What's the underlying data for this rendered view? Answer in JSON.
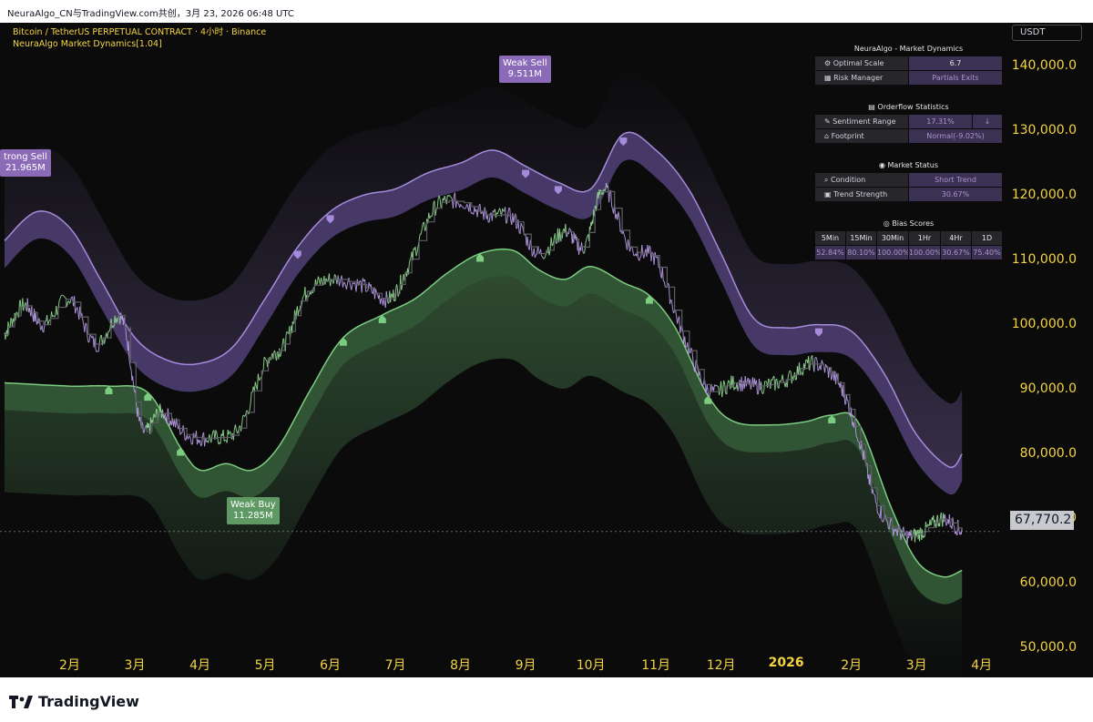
{
  "header": {
    "text": "NeuraAlgo_CN与TradingView.com共创，3月 23, 2026 06:48 UTC"
  },
  "chart_header": {
    "symbol_line": "Bitcoin / TetherUS PERPETUAL CONTRACT · 4小时 · Binance",
    "indicator_line": "NeuraAlgo Market Dynamics[1.04]"
  },
  "currency_button": "USDT",
  "last_price": "67,770.2",
  "colors": {
    "background": "#0b0b0c",
    "bull": "#6fbf73",
    "bear": "#9a7fd1",
    "axis_text": "#f5d442"
  },
  "signals": [
    {
      "type": "sell",
      "label": "trong Sell",
      "value": "21.965M"
    },
    {
      "type": "sell",
      "label": "Weak Sell",
      "value": "9.511M"
    },
    {
      "type": "buy",
      "label": "Weak Buy",
      "value": "11.285M"
    }
  ],
  "dashboard": {
    "title": "NeuraAlgo - Market Dynamics",
    "rows": [
      {
        "icon": "gear-icon",
        "label": "Optimal Scale",
        "value": "6.7"
      },
      {
        "icon": "chart-icon",
        "label": "Risk Manager",
        "value": "Partials Exits"
      }
    ],
    "orderflow_title": "Orderflow Statistics",
    "orderflow_rows": [
      {
        "icon": "ruler-icon",
        "label": "Sentiment Range",
        "value": "17.31%",
        "extra": "↓"
      },
      {
        "icon": "bank-icon",
        "label": "Footprint",
        "value": "Normal(-9.02%)"
      }
    ],
    "status_title": "Market Status",
    "status_rows": [
      {
        "icon": "search-icon",
        "label": "Condition",
        "value": "Short Trend"
      },
      {
        "icon": "strength-icon",
        "label": "Trend Strength",
        "value": "30.67%"
      }
    ],
    "bias_title": "Bias Scores",
    "bias_headers": [
      "5Min",
      "15Min",
      "30Min",
      "1Hr",
      "4Hr",
      "1D"
    ],
    "bias_values": [
      "52.84%",
      "80.10%",
      "100.00%",
      "100.00%",
      "30.67%",
      "75.40%"
    ]
  },
  "brand": "TradingView",
  "chart_data": {
    "type": "line",
    "title": "Bitcoin / TetherUS PERPETUAL CONTRACT · 4小时 · Binance",
    "ylabel": "USDT",
    "ylim": [
      46000,
      146000
    ],
    "y_ticks": [
      "140,000.0",
      "130,000.0",
      "120,000.0",
      "110,000.0",
      "100,000.0",
      "90,000.0",
      "80,000.0",
      "70,000.0",
      "60,000.0",
      "50,000.0"
    ],
    "y_tick_values": [
      140000,
      130000,
      120000,
      110000,
      100000,
      90000,
      80000,
      70000,
      60000,
      50000
    ],
    "x_ticks": [
      "2月",
      "3月",
      "4月",
      "5月",
      "6月",
      "7月",
      "8月",
      "9月",
      "10月",
      "11月",
      "12月",
      "2026",
      "2月",
      "3月",
      "4月"
    ],
    "x_tick_values": [
      1.0,
      2.0,
      3.0,
      4.0,
      5.0,
      6.0,
      7.0,
      8.0,
      9.0,
      10.0,
      11.0,
      12.0,
      13.0,
      14.0,
      15.0
    ],
    "bold_ticks": [
      "2026"
    ],
    "series": [
      {
        "name": "",
        "x": [
          0.0,
          0.3,
          0.6,
          1.0,
          1.4,
          1.8,
          2.1,
          2.4,
          2.8,
          3.2,
          3.6,
          4.0,
          4.3,
          4.6,
          5.0,
          5.5,
          5.9,
          6.2,
          6.6,
          7.0,
          7.4,
          7.8,
          8.2,
          8.6,
          8.9,
          9.2,
          9.6,
          10.0,
          10.4,
          10.8,
          11.2,
          11.6,
          12.0,
          12.4,
          12.8,
          13.1,
          13.4,
          13.8,
          14.1,
          14.4,
          14.7
        ],
        "values": [
          98500,
          103000,
          100000,
          104000,
          97000,
          101000,
          84000,
          86500,
          83000,
          82500,
          84000,
          94000,
          97000,
          104500,
          107000,
          106000,
          104000,
          109000,
          118000,
          119000,
          117000,
          116500,
          111000,
          114500,
          112000,
          121000,
          112000,
          110000,
          99000,
          90000,
          91000,
          90500,
          91500,
          94000,
          91000,
          83000,
          72000,
          67500,
          68000,
          70000,
          68000
        ]
      },
      {
        "name": "",
        "x": [
          0.0,
          1.0,
          1.6,
          2.2,
          2.7,
          3.0,
          3.4,
          3.8,
          4.2,
          4.7,
          5.2,
          5.8,
          6.3,
          6.8,
          7.3,
          7.8,
          8.2,
          8.6,
          9.0,
          9.5,
          9.9,
          10.3,
          10.8,
          11.2,
          11.8,
          12.3,
          12.7,
          13.1,
          13.6,
          14.0,
          14.4,
          14.7
        ],
        "values": [
          91000,
          90500,
          90500,
          89500,
          81000,
          77500,
          78500,
          77500,
          81000,
          90000,
          98000,
          101500,
          104000,
          108000,
          111000,
          111500,
          108500,
          107000,
          109000,
          106500,
          104500,
          99500,
          89000,
          85000,
          84500,
          85000,
          86000,
          85000,
          72000,
          63500,
          61000,
          62000
        ]
      },
      {
        "name": "",
        "x": [
          0.0,
          0.5,
          1.0,
          1.5,
          2.0,
          2.5,
          3.0,
          3.5,
          4.0,
          4.5,
          5.0,
          5.5,
          6.0,
          6.5,
          7.0,
          7.5,
          8.0,
          8.5,
          9.0,
          9.5,
          10.0,
          10.5,
          11.0,
          11.5,
          12.0,
          12.5,
          13.0,
          13.5,
          14.0,
          14.5,
          14.7
        ],
        "values": [
          113000,
          117500,
          115000,
          106500,
          98000,
          94500,
          94000,
          96500,
          104000,
          112000,
          117500,
          120000,
          121000,
          123500,
          125000,
          127000,
          124500,
          122000,
          121000,
          129500,
          127000,
          121000,
          111000,
          101000,
          99500,
          100000,
          99000,
          92500,
          83000,
          78000,
          80000
        ]
      }
    ],
    "grid": false,
    "legend": "none"
  }
}
